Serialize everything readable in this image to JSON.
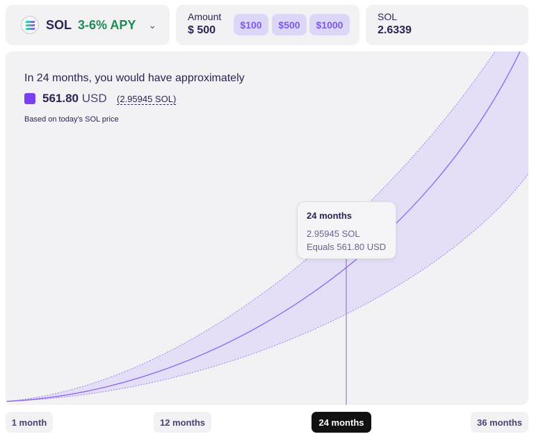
{
  "asset": {
    "symbol": "SOL",
    "apy": "3-6% APY",
    "icon": "solana-logo-icon"
  },
  "amount": {
    "label": "Amount",
    "value": "$ 500",
    "presets": [
      "$100",
      "$500",
      "$1000"
    ]
  },
  "sol": {
    "label": "SOL",
    "value": "2.6339"
  },
  "summary": {
    "headline": "In 24 months, you would have approximately",
    "usd_value": "561.80",
    "usd_unit": "USD",
    "sol_value": "(2.95945 SOL)",
    "note": "Based on today's SOL price"
  },
  "tooltip": {
    "title": "24 months",
    "sol": "2.95945 SOL",
    "usd": "Equals 561.80 USD"
  },
  "timeline": {
    "options": [
      "1 month",
      "12 months",
      "24 months",
      "36 months"
    ],
    "selected": "24 months"
  },
  "colors": {
    "accent": "#7b3ff2",
    "band": "#e2dcf7",
    "apy": "#1f8a55"
  }
}
